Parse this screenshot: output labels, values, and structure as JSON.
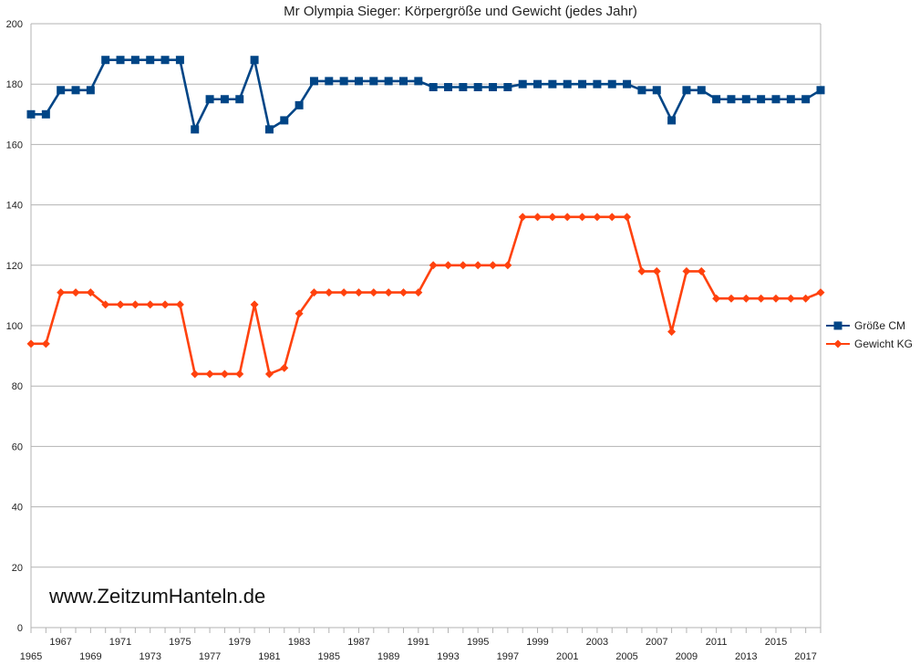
{
  "chart_data": {
    "type": "line",
    "title": "Mr Olympia Sieger: Körpergröße und Gewicht (jedes Jahr)",
    "xlabel": "",
    "ylabel": "",
    "ylim": [
      0,
      200
    ],
    "yticks": [
      "0",
      "20",
      "40",
      "60",
      "80",
      "100",
      "120",
      "140",
      "160",
      "180",
      "200"
    ],
    "x": [
      1965,
      1966,
      1967,
      1968,
      1969,
      1970,
      1971,
      1972,
      1973,
      1974,
      1975,
      1976,
      1977,
      1978,
      1979,
      1980,
      1981,
      1982,
      1983,
      1984,
      1985,
      1986,
      1987,
      1988,
      1989,
      1990,
      1991,
      1992,
      1993,
      1994,
      1995,
      1996,
      1997,
      1998,
      1999,
      2000,
      2001,
      2002,
      2003,
      2004,
      2005,
      2006,
      2007,
      2008,
      2009,
      2010,
      2011,
      2012,
      2013,
      2014,
      2015,
      2016,
      2017,
      2018
    ],
    "xtick_labels_lower": [
      "1965",
      "1969",
      "1973",
      "1977",
      "1981",
      "1985",
      "1989",
      "1993",
      "1997",
      "2001",
      "2005",
      "2009",
      "2013",
      "2017"
    ],
    "xtick_labels_upper": [
      "1967",
      "1971",
      "1975",
      "1979",
      "1983",
      "1987",
      "1991",
      "1995",
      "1999",
      "2003",
      "2007",
      "2011",
      "2015"
    ],
    "grid": true,
    "legend_position": "right",
    "series": [
      {
        "name": "Größe CM",
        "color": "#004586",
        "marker": "square",
        "values": [
          170,
          170,
          178,
          178,
          178,
          188,
          188,
          188,
          188,
          188,
          188,
          165,
          175,
          175,
          175,
          188,
          165,
          168,
          173,
          181,
          181,
          181,
          181,
          181,
          181,
          181,
          181,
          179,
          179,
          179,
          179,
          179,
          179,
          180,
          180,
          180,
          180,
          180,
          180,
          180,
          180,
          178,
          178,
          168,
          178,
          178,
          175,
          175,
          175,
          175,
          175,
          175,
          175,
          178
        ]
      },
      {
        "name": "Gewicht KG",
        "color": "#ff420e",
        "marker": "diamond",
        "values": [
          94,
          94,
          111,
          111,
          111,
          107,
          107,
          107,
          107,
          107,
          107,
          84,
          84,
          84,
          84,
          107,
          84,
          86,
          104,
          111,
          111,
          111,
          111,
          111,
          111,
          111,
          111,
          120,
          120,
          120,
          120,
          120,
          120,
          136,
          136,
          136,
          136,
          136,
          136,
          136,
          136,
          118,
          118,
          98,
          118,
          118,
          109,
          109,
          109,
          109,
          109,
          109,
          109,
          111
        ]
      }
    ]
  },
  "watermark": "www.ZeitzumHanteln.de"
}
